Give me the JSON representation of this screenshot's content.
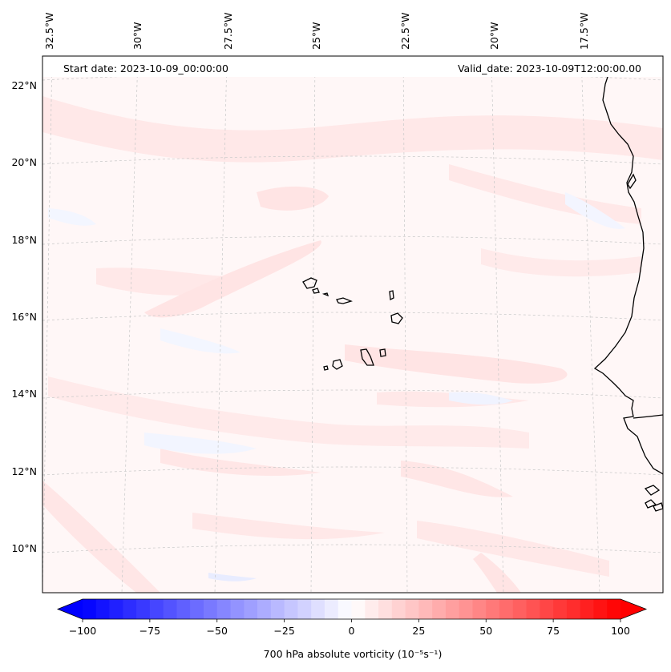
{
  "header": {
    "start_date": "Start date: 2023-10-09_00:00:00",
    "valid_date": "Valid_date: 2023-10-09T12:00:00.00"
  },
  "map": {
    "longitude_labels": [
      "32.5°W",
      "30°W",
      "27.5°W",
      "25°W",
      "22.5°W",
      "20°W",
      "17.5°W"
    ],
    "latitude_labels": [
      "22°N",
      "20°N",
      "18°N",
      "16°N",
      "14°N",
      "12°N",
      "10°N"
    ],
    "field_colors": {
      "background": "#fff7f7",
      "light_red": "#ffe6e6",
      "light_blue": "#f2f5ff",
      "coastline": "#000000",
      "gridline": "#c8c8c8"
    }
  },
  "colorbar": {
    "label": "700 hPa absolute vorticity (10⁻⁵s⁻¹)",
    "ticks": [
      "−100",
      "−75",
      "−50",
      "−25",
      "0",
      "25",
      "50",
      "75",
      "100"
    ],
    "min_color": "#0000ff",
    "mid_color": "#ffffff",
    "max_color": "#ff0000"
  }
}
